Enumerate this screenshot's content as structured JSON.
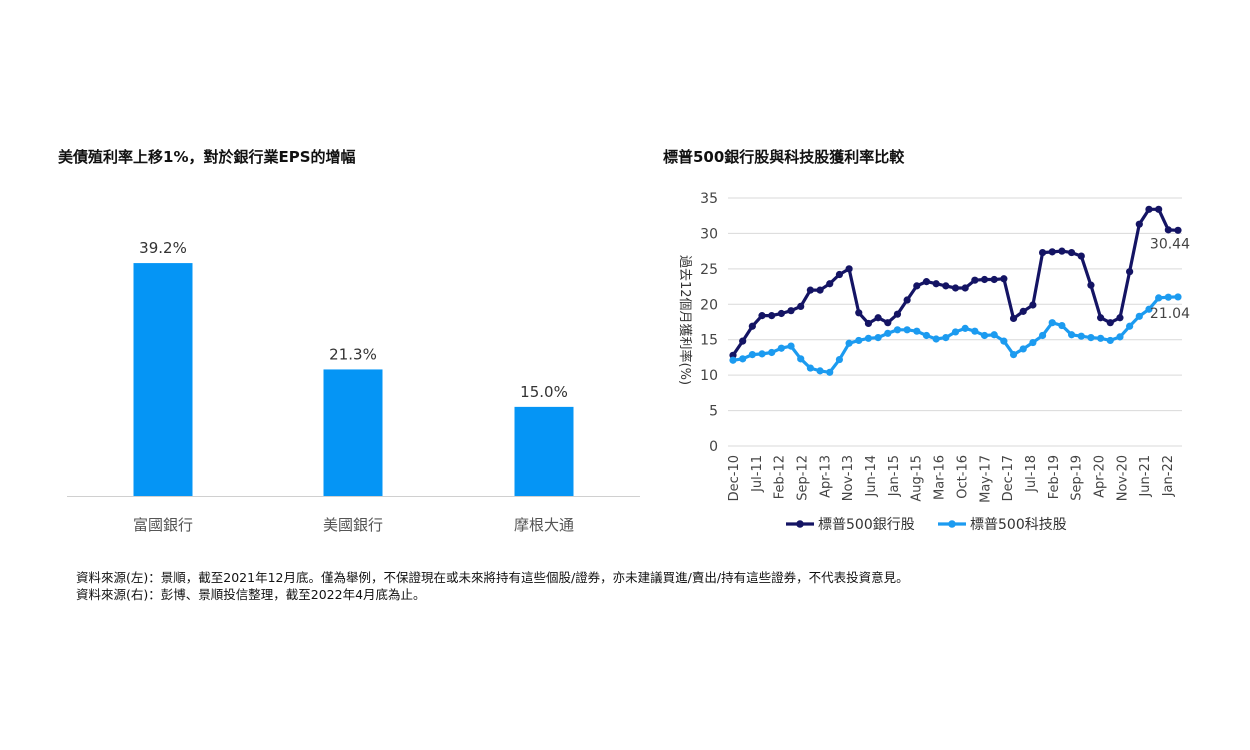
{
  "charts_meta": {
    "left_title": "美債殖利率上移1%，對於銀行業EPS的增幅",
    "right_title": "標普500銀行股與科技股獲利率比較"
  },
  "chart_data": [
    {
      "type": "bar",
      "title": "美債殖利率上移1%，對於銀行業EPS的增幅",
      "categories": [
        "富國銀行",
        "美國銀行",
        "摩根大通"
      ],
      "values": [
        39.2,
        21.3,
        15.0
      ],
      "value_labels": [
        "39.2%",
        "21.3%",
        "15.0%"
      ],
      "ylim": [
        0,
        51.5
      ],
      "grid": false,
      "color": "#0595f5"
    },
    {
      "type": "line",
      "title": "標普500銀行股與科技股獲利率比較",
      "ylabel": "過去12個月獲利率(%)",
      "ylim": [
        0,
        35
      ],
      "yticks": [
        "0",
        "5",
        "10",
        "15",
        "20",
        "25",
        "30",
        "35"
      ],
      "xtick_labels": [
        "Dec-10",
        "Jul-11",
        "Feb-12",
        "Sep-12",
        "Apr-13",
        "Nov-13",
        "Jun-14",
        "Jan-15",
        "Aug-15",
        "Mar-16",
        "Oct-16",
        "May-17",
        "Dec-17",
        "Jul-18",
        "Feb-19",
        "Sep-19",
        "Apr-20",
        "Nov-20",
        "Jun-21",
        "Jan-22"
      ],
      "grid": true,
      "legend_position": "bottom",
      "series": [
        {
          "name": "標普500銀行股",
          "color": "#141464",
          "end_label": "30.44",
          "values": [
            12.8,
            14.8,
            16.9,
            18.4,
            18.4,
            18.7,
            19.1,
            19.7,
            22.0,
            22.0,
            22.9,
            24.2,
            25.0,
            18.8,
            17.3,
            18.1,
            17.4,
            18.6,
            20.6,
            22.6,
            23.2,
            22.9,
            22.6,
            22.3,
            22.3,
            23.4,
            23.5,
            23.5,
            23.6,
            18.0,
            19.0,
            19.9,
            27.3,
            27.4,
            27.5,
            27.3,
            26.8,
            22.7,
            18.1,
            17.4,
            18.1,
            24.6,
            31.3,
            33.4,
            33.4,
            30.5,
            30.44
          ]
        },
        {
          "name": "標普500科技股",
          "color": "#1c9bf0",
          "end_label": "21.04",
          "values": [
            12.1,
            12.3,
            12.9,
            13.0,
            13.2,
            13.8,
            14.1,
            12.3,
            11.0,
            10.6,
            10.4,
            12.2,
            14.5,
            14.9,
            15.2,
            15.3,
            15.9,
            16.4,
            16.4,
            16.2,
            15.6,
            15.1,
            15.3,
            16.1,
            16.6,
            16.2,
            15.6,
            15.7,
            14.8,
            12.9,
            13.7,
            14.6,
            15.6,
            17.4,
            17.0,
            15.7,
            15.5,
            15.3,
            15.2,
            14.9,
            15.4,
            16.9,
            18.3,
            19.3,
            20.9,
            21.0,
            21.04
          ]
        }
      ]
    }
  ],
  "footer": {
    "source_left": "資料來源(左)：景順，截至2021年12月底。僅為舉例，不保證現在或未來將持有這些個股/證券，亦未建議買進/賣出/持有這些證券，不代表投資意見。",
    "source_right": "資料來源(右)：彭博、景順投信整理，截至2022年4月底為止。"
  }
}
